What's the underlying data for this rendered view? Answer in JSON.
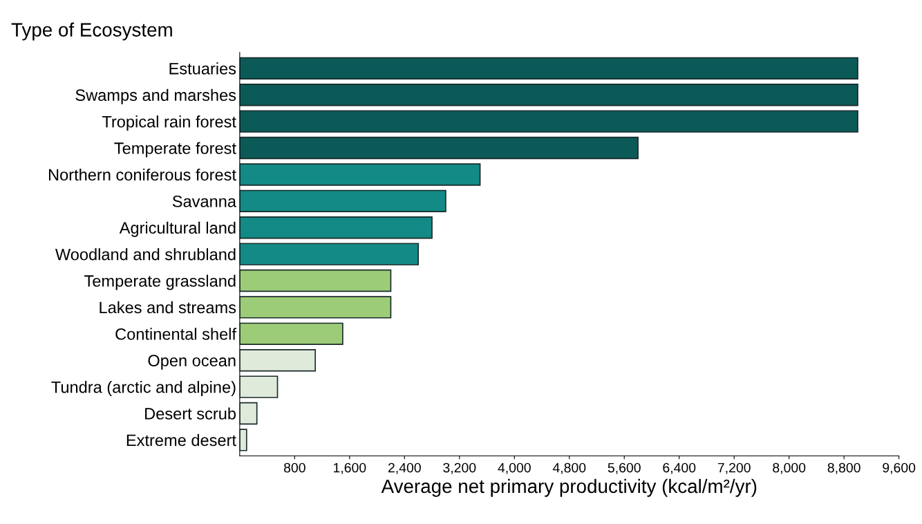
{
  "chart_data": {
    "type": "bar",
    "orientation": "horizontal",
    "ylabel": "Type of Ecosystem",
    "xlabel": "Average net primary productivity (kcal/m²/yr)",
    "categories": [
      "Estuaries",
      "Swamps and marshes",
      "Tropical rain forest",
      "Temperate forest",
      "Northern coniferous forest",
      "Savanna",
      "Agricultural land",
      "Woodland and shrubland",
      "Temperate grassland",
      "Lakes and streams",
      "Continental shelf",
      "Open ocean",
      "Tundra (arctic and alpine)",
      "Desert scrub",
      "Extreme desert"
    ],
    "values": [
      9000,
      9000,
      9000,
      5800,
      3500,
      3000,
      2800,
      2600,
      2200,
      2200,
      1500,
      1100,
      550,
      250,
      100
    ],
    "colors": [
      "#0b5a58",
      "#0b5a58",
      "#0b5a58",
      "#0b5a58",
      "#138a86",
      "#138a86",
      "#138a86",
      "#138a86",
      "#9ccc78",
      "#9ccc78",
      "#9ccc78",
      "#dfeadb",
      "#dfeadb",
      "#dfeadb",
      "#dfeadb"
    ],
    "xlim": [
      0,
      9600
    ],
    "xticks": [
      {
        "value": 800,
        "label": "800"
      },
      {
        "value": 1600,
        "label": "1,600"
      },
      {
        "value": 2400,
        "label": "2,400"
      },
      {
        "value": 3200,
        "label": "3,200"
      },
      {
        "value": 4000,
        "label": "4,000"
      },
      {
        "value": 4800,
        "label": "4,800"
      },
      {
        "value": 5600,
        "label": "5,600"
      },
      {
        "value": 6400,
        "label": "6,400"
      },
      {
        "value": 7200,
        "label": "7,200"
      },
      {
        "value": 8000,
        "label": "8,000"
      },
      {
        "value": 8800,
        "label": "8,800"
      },
      {
        "value": 9600,
        "label": "9,600"
      }
    ],
    "grid": false,
    "legend": false
  }
}
